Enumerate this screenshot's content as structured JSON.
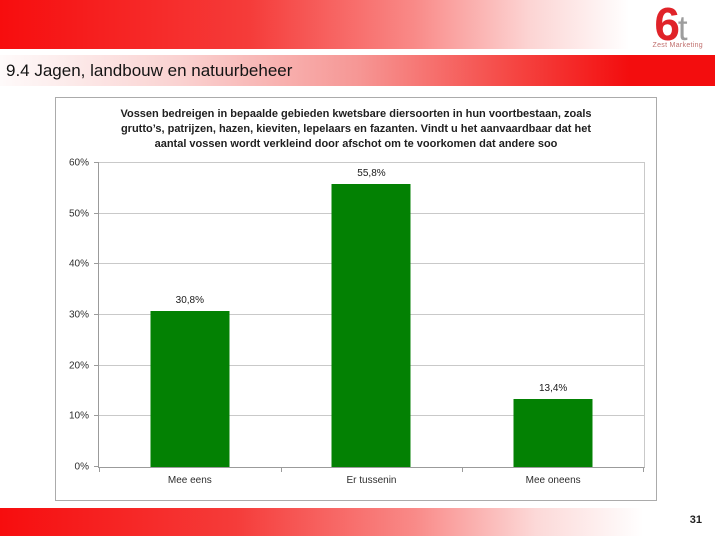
{
  "slide": {
    "header": {
      "title": "9.4 Jagen, landbouw en natuurbeheer"
    },
    "logo": {
      "number": "6",
      "letter": "t",
      "tagline": "Zest Marketing"
    },
    "footer": {
      "page_number": "31"
    },
    "colors": {
      "accent_red": "#f30d0e",
      "logo_red": "#e02329",
      "logo_gray": "#9d9d9d",
      "bar_green": "#038103",
      "gridline_gray": "#c9c9c9",
      "axis_gray": "#9b9b9b"
    }
  },
  "chart_data": {
    "type": "bar",
    "title": "Vossen bedreigen in bepaalde gebieden kwetsbare diersoorten in hun voortbestaan, zoals grutto’s,  patrijzen, hazen, kieviten, lepelaars en fazanten. Vindt u het aanvaardbaar dat het aantal vossen wordt verkleind door afschot om te voorkomen dat andere soo",
    "title_lines": [
      "Vossen bedreigen in bepaalde gebieden kwetsbare diersoorten in hun voortbestaan, zoals",
      "grutto’s,  patrijzen, hazen, kieviten, lepelaars en fazanten. Vindt u het aanvaardbaar dat het",
      "aantal vossen wordt verkleind door afschot om te voorkomen dat andere soo"
    ],
    "categories": [
      "Mee eens",
      "Er tussenin",
      "Mee oneens"
    ],
    "values": [
      30.8,
      55.8,
      13.4
    ],
    "value_labels": [
      "30,8%",
      "55,8%",
      "13,4%"
    ],
    "xlabel": "",
    "ylabel": "",
    "ylim": [
      0,
      60
    ],
    "yticks": [
      0,
      10,
      20,
      30,
      40,
      50,
      60
    ],
    "ytick_labels": [
      "0%",
      "10%",
      "20%",
      "30%",
      "40%",
      "50%",
      "60%"
    ],
    "bar_color": "#038103",
    "grid": true,
    "legend": null
  }
}
